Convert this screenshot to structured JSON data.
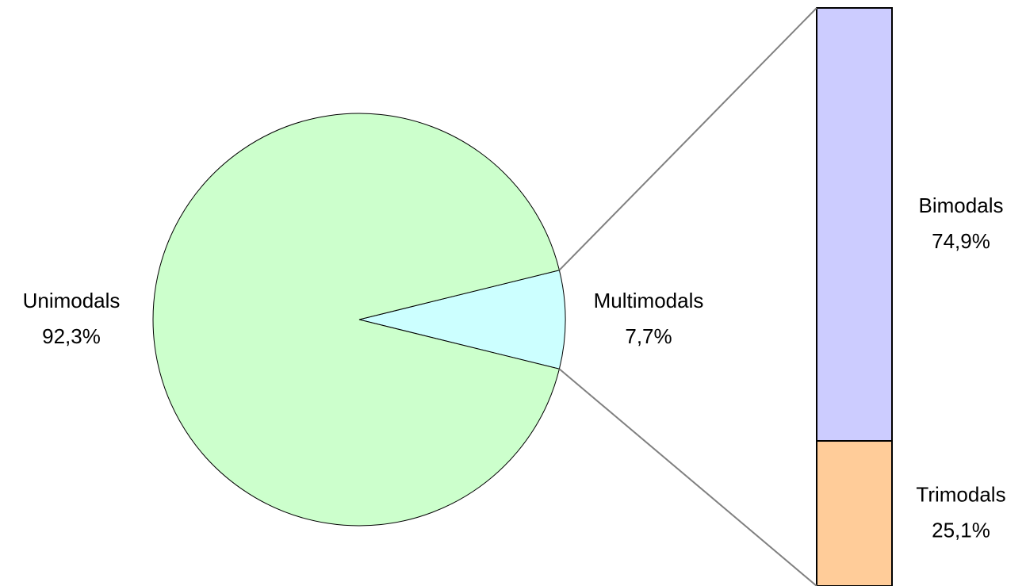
{
  "chart_data": [
    {
      "type": "pie",
      "categories": [
        "Unimodals",
        "Multimodals"
      ],
      "values": [
        92.3,
        7.7
      ],
      "value_labels": [
        "92,3%",
        "7,7%"
      ],
      "colors": [
        "#ccffcc",
        "#ccffff"
      ]
    },
    {
      "type": "bar",
      "stacked": true,
      "categories": [
        "Bimodals",
        "Trimodals"
      ],
      "values": [
        74.9,
        25.1
      ],
      "value_labels": [
        "74,9%",
        "25,1%"
      ],
      "colors": [
        "#ccccff",
        "#ffcc99"
      ]
    }
  ]
}
